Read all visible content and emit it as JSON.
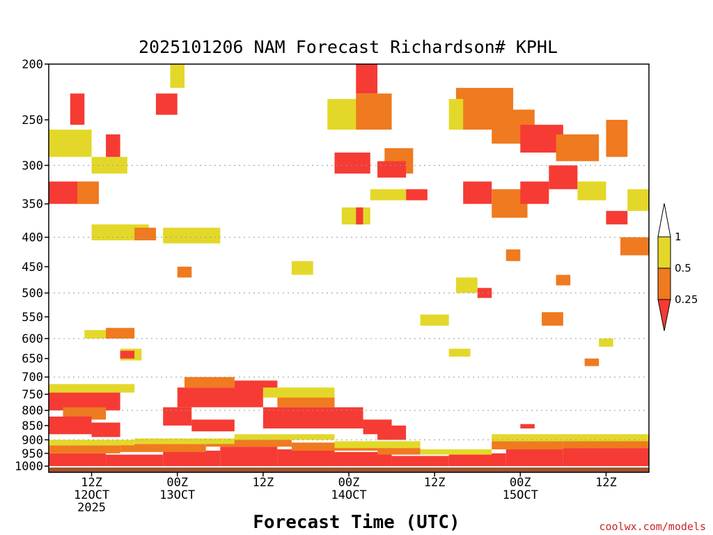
{
  "chart_data": {
    "type": "heatmap",
    "title": "2025101206 NAM Forecast Richardson# KPHL",
    "xlabel": "Forecast Time (UTC)",
    "ylabel": "",
    "credit": "coolwx.com/models",
    "x_ticks": [
      {
        "hour": 6,
        "lines": [
          "12Z",
          "12OCT",
          "2025"
        ]
      },
      {
        "hour": 18,
        "lines": [
          "00Z",
          "13OCT"
        ]
      },
      {
        "hour": 30,
        "lines": [
          "12Z"
        ]
      },
      {
        "hour": 42,
        "lines": [
          "00Z",
          "14OCT"
        ]
      },
      {
        "hour": 54,
        "lines": [
          "12Z"
        ]
      },
      {
        "hour": 66,
        "lines": [
          "00Z",
          "15OCT"
        ]
      },
      {
        "hour": 78,
        "lines": [
          "12Z"
        ]
      }
    ],
    "xlim": [
      0,
      84
    ],
    "y_ticks": [
      "200",
      "250",
      "300",
      "350",
      "400",
      "450",
      "500",
      "550",
      "600",
      "650",
      "700",
      "750",
      "800",
      "850",
      "900",
      "950",
      "1000"
    ],
    "ylim": [
      1025,
      200
    ],
    "gridlines_hPa": [
      300,
      400,
      500,
      600,
      700,
      800,
      900
    ],
    "colorbar": {
      "ticks": [
        "1",
        "0.5",
        "0.25"
      ],
      "levels": [
        {
          "range": "> 1",
          "color": "#ffffff"
        },
        {
          "range": "0.5 - 1",
          "color": "#e3d829"
        },
        {
          "range": "0.25 - 0.5",
          "color": "#ef7a1f"
        },
        {
          "range": "< 0.25",
          "color": "#f53b34"
        }
      ]
    },
    "colors": {
      "yellow": "#e3d829",
      "orange": "#ef7a1f",
      "red": "#f53b34",
      "ground": "#a0522d"
    },
    "patches": [
      {
        "t0": 0,
        "t1": 8,
        "p0": 950,
        "p1": 1000,
        "c": "red"
      },
      {
        "t0": 8,
        "t1": 16,
        "p0": 955,
        "p1": 1000,
        "c": "red"
      },
      {
        "t0": 16,
        "t1": 24,
        "p0": 940,
        "p1": 1000,
        "c": "red"
      },
      {
        "t0": 24,
        "t1": 32,
        "p0": 925,
        "p1": 1000,
        "c": "red"
      },
      {
        "t0": 32,
        "t1": 40,
        "p0": 935,
        "p1": 1000,
        "c": "red"
      },
      {
        "t0": 40,
        "t1": 48,
        "p0": 945,
        "p1": 1000,
        "c": "red"
      },
      {
        "t0": 48,
        "t1": 56,
        "p0": 960,
        "p1": 1000,
        "c": "red"
      },
      {
        "t0": 56,
        "t1": 64,
        "p0": 950,
        "p1": 1000,
        "c": "red"
      },
      {
        "t0": 64,
        "t1": 72,
        "p0": 935,
        "p1": 1000,
        "c": "red"
      },
      {
        "t0": 72,
        "t1": 84,
        "p0": 930,
        "p1": 1000,
        "c": "red"
      },
      {
        "t0": 0,
        "t1": 10,
        "p0": 920,
        "p1": 950,
        "c": "orange"
      },
      {
        "t0": 10,
        "t1": 22,
        "p0": 915,
        "p1": 945,
        "c": "orange"
      },
      {
        "t0": 22,
        "t1": 34,
        "p0": 900,
        "p1": 925,
        "c": "orange"
      },
      {
        "t0": 34,
        "t1": 46,
        "p0": 910,
        "p1": 940,
        "c": "orange"
      },
      {
        "t0": 46,
        "t1": 52,
        "p0": 930,
        "p1": 955,
        "c": "orange"
      },
      {
        "t0": 62,
        "t1": 72,
        "p0": 905,
        "p1": 935,
        "c": "orange"
      },
      {
        "t0": 72,
        "t1": 84,
        "p0": 900,
        "p1": 930,
        "c": "orange"
      },
      {
        "t0": 0,
        "t1": 12,
        "p0": 900,
        "p1": 920,
        "c": "yellow"
      },
      {
        "t0": 12,
        "t1": 26,
        "p0": 895,
        "p1": 915,
        "c": "yellow"
      },
      {
        "t0": 26,
        "t1": 40,
        "p0": 880,
        "p1": 900,
        "c": "yellow"
      },
      {
        "t0": 40,
        "t1": 52,
        "p0": 905,
        "p1": 930,
        "c": "yellow"
      },
      {
        "t0": 52,
        "t1": 62,
        "p0": 935,
        "p1": 955,
        "c": "yellow"
      },
      {
        "t0": 62,
        "t1": 84,
        "p0": 880,
        "p1": 905,
        "c": "yellow"
      },
      {
        "t0": 0,
        "t1": 10,
        "p0": 740,
        "p1": 800,
        "c": "red"
      },
      {
        "t0": 2,
        "t1": 8,
        "p0": 790,
        "p1": 830,
        "c": "orange"
      },
      {
        "t0": 0,
        "t1": 12,
        "p0": 720,
        "p1": 745,
        "c": "yellow"
      },
      {
        "t0": 0,
        "t1": 6,
        "p0": 820,
        "p1": 880,
        "c": "red"
      },
      {
        "t0": 6,
        "t1": 10,
        "p0": 840,
        "p1": 890,
        "c": "red"
      },
      {
        "t0": 16,
        "t1": 20,
        "p0": 790,
        "p1": 850,
        "c": "red"
      },
      {
        "t0": 18,
        "t1": 30,
        "p0": 730,
        "p1": 790,
        "c": "red"
      },
      {
        "t0": 30,
        "t1": 44,
        "p0": 790,
        "p1": 860,
        "c": "red"
      },
      {
        "t0": 20,
        "t1": 26,
        "p0": 830,
        "p1": 870,
        "c": "red"
      },
      {
        "t0": 44,
        "t1": 48,
        "p0": 830,
        "p1": 880,
        "c": "red"
      },
      {
        "t0": 19,
        "t1": 26,
        "p0": 700,
        "p1": 730,
        "c": "orange"
      },
      {
        "t0": 26,
        "t1": 32,
        "p0": 710,
        "p1": 740,
        "c": "red"
      },
      {
        "t0": 32,
        "t1": 40,
        "p0": 750,
        "p1": 790,
        "c": "orange"
      },
      {
        "t0": 30,
        "t1": 40,
        "p0": 730,
        "p1": 760,
        "c": "yellow"
      },
      {
        "t0": 46,
        "t1": 50,
        "p0": 850,
        "p1": 900,
        "c": "red"
      },
      {
        "t0": 5,
        "t1": 12,
        "p0": 580,
        "p1": 600,
        "c": "yellow"
      },
      {
        "t0": 8,
        "t1": 12,
        "p0": 575,
        "p1": 600,
        "c": "orange"
      },
      {
        "t0": 10,
        "t1": 13,
        "p0": 625,
        "p1": 655,
        "c": "yellow"
      },
      {
        "t0": 10,
        "t1": 12,
        "p0": 630,
        "p1": 650,
        "c": "red"
      },
      {
        "t0": 0,
        "t1": 7,
        "p0": 320,
        "p1": 350,
        "c": "red"
      },
      {
        "t0": 4,
        "t1": 7,
        "p0": 320,
        "p1": 350,
        "c": "orange"
      },
      {
        "t0": 0,
        "t1": 6,
        "p0": 260,
        "p1": 290,
        "c": "yellow"
      },
      {
        "t0": 6,
        "t1": 11,
        "p0": 290,
        "p1": 310,
        "c": "yellow"
      },
      {
        "t0": 3,
        "t1": 5,
        "p0": 225,
        "p1": 255,
        "c": "red"
      },
      {
        "t0": 8,
        "t1": 10,
        "p0": 265,
        "p1": 290,
        "c": "red"
      },
      {
        "t0": 15,
        "t1": 18,
        "p0": 225,
        "p1": 245,
        "c": "red"
      },
      {
        "t0": 17,
        "t1": 19,
        "p0": 200,
        "p1": 220,
        "c": "yellow"
      },
      {
        "t0": 6,
        "t1": 14,
        "p0": 380,
        "p1": 405,
        "c": "yellow"
      },
      {
        "t0": 12,
        "t1": 15,
        "p0": 385,
        "p1": 405,
        "c": "orange"
      },
      {
        "t0": 16,
        "t1": 24,
        "p0": 385,
        "p1": 410,
        "c": "yellow"
      },
      {
        "t0": 18,
        "t1": 20,
        "p0": 450,
        "p1": 470,
        "c": "orange"
      },
      {
        "t0": 39,
        "t1": 44,
        "p0": 230,
        "p1": 260,
        "c": "yellow"
      },
      {
        "t0": 43,
        "t1": 46,
        "p0": 200,
        "p1": 225,
        "c": "red"
      },
      {
        "t0": 43,
        "t1": 48,
        "p0": 225,
        "p1": 260,
        "c": "orange"
      },
      {
        "t0": 40,
        "t1": 45,
        "p0": 285,
        "p1": 310,
        "c": "red"
      },
      {
        "t0": 47,
        "t1": 51,
        "p0": 280,
        "p1": 310,
        "c": "orange"
      },
      {
        "t0": 46,
        "t1": 50,
        "p0": 295,
        "p1": 315,
        "c": "red"
      },
      {
        "t0": 41,
        "t1": 45,
        "p0": 355,
        "p1": 380,
        "c": "yellow"
      },
      {
        "t0": 43,
        "t1": 44,
        "p0": 355,
        "p1": 380,
        "c": "red"
      },
      {
        "t0": 50,
        "t1": 53,
        "p0": 330,
        "p1": 345,
        "c": "red"
      },
      {
        "t0": 45,
        "t1": 50,
        "p0": 330,
        "p1": 345,
        "c": "yellow"
      },
      {
        "t0": 34,
        "t1": 37,
        "p0": 440,
        "p1": 465,
        "c": "yellow"
      },
      {
        "t0": 57,
        "t1": 65,
        "p0": 220,
        "p1": 260,
        "c": "orange"
      },
      {
        "t0": 56,
        "t1": 58,
        "p0": 230,
        "p1": 260,
        "c": "yellow"
      },
      {
        "t0": 62,
        "t1": 68,
        "p0": 240,
        "p1": 275,
        "c": "orange"
      },
      {
        "t0": 66,
        "t1": 72,
        "p0": 255,
        "p1": 285,
        "c": "red"
      },
      {
        "t0": 71,
        "t1": 77,
        "p0": 265,
        "p1": 295,
        "c": "orange"
      },
      {
        "t0": 78,
        "t1": 81,
        "p0": 250,
        "p1": 290,
        "c": "orange"
      },
      {
        "t0": 58,
        "t1": 62,
        "p0": 320,
        "p1": 350,
        "c": "red"
      },
      {
        "t0": 62,
        "t1": 67,
        "p0": 330,
        "p1": 370,
        "c": "orange"
      },
      {
        "t0": 66,
        "t1": 70,
        "p0": 320,
        "p1": 350,
        "c": "red"
      },
      {
        "t0": 70,
        "t1": 74,
        "p0": 300,
        "p1": 330,
        "c": "red"
      },
      {
        "t0": 74,
        "t1": 78,
        "p0": 320,
        "p1": 345,
        "c": "yellow"
      },
      {
        "t0": 78,
        "t1": 81,
        "p0": 360,
        "p1": 380,
        "c": "red"
      },
      {
        "t0": 81,
        "t1": 84,
        "p0": 330,
        "p1": 360,
        "c": "yellow"
      },
      {
        "t0": 80,
        "t1": 84,
        "p0": 400,
        "p1": 430,
        "c": "orange"
      },
      {
        "t0": 64,
        "t1": 66,
        "p0": 420,
        "p1": 440,
        "c": "orange"
      },
      {
        "t0": 71,
        "t1": 73,
        "p0": 465,
        "p1": 485,
        "c": "orange"
      },
      {
        "t0": 57,
        "t1": 60,
        "p0": 470,
        "p1": 500,
        "c": "yellow"
      },
      {
        "t0": 60,
        "t1": 62,
        "p0": 490,
        "p1": 510,
        "c": "red"
      },
      {
        "t0": 69,
        "t1": 72,
        "p0": 540,
        "p1": 570,
        "c": "orange"
      },
      {
        "t0": 52,
        "t1": 56,
        "p0": 545,
        "p1": 570,
        "c": "yellow"
      },
      {
        "t0": 56,
        "t1": 59,
        "p0": 625,
        "p1": 645,
        "c": "yellow"
      },
      {
        "t0": 77,
        "t1": 79,
        "p0": 600,
        "p1": 620,
        "c": "yellow"
      },
      {
        "t0": 75,
        "t1": 77,
        "p0": 650,
        "p1": 670,
        "c": "orange"
      },
      {
        "t0": 66,
        "t1": 68,
        "p0": 845,
        "p1": 860,
        "c": "red"
      }
    ]
  }
}
